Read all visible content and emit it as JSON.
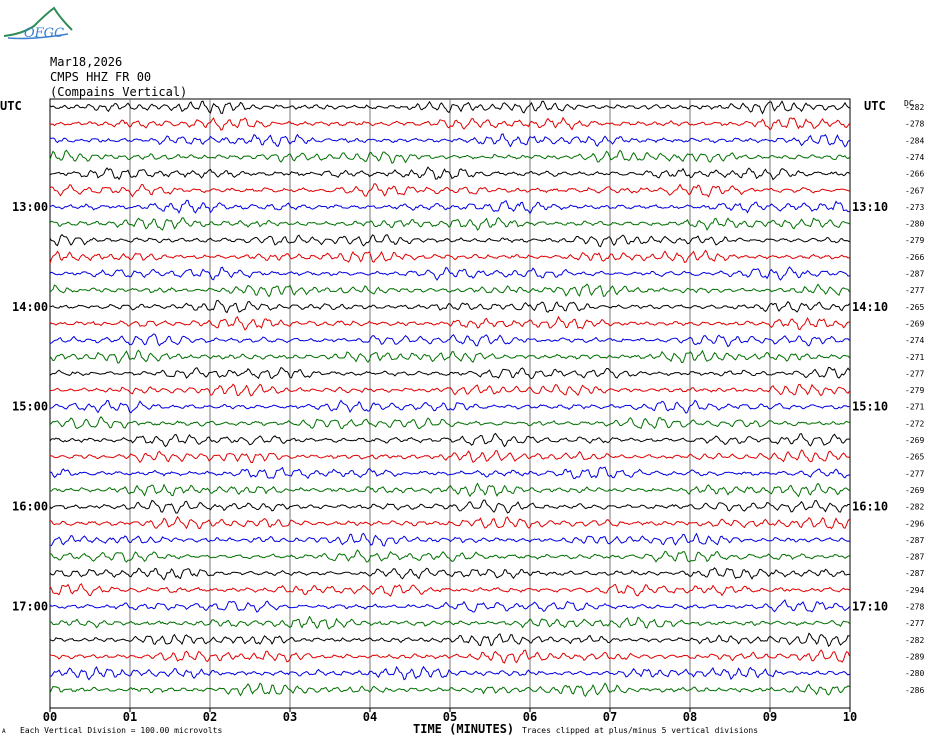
{
  "logo": {
    "text": "OFGC",
    "icon": "mountain-logo-icon",
    "color": "#3a7fd0"
  },
  "header": {
    "date": "Mar18,2026",
    "station": "CMPS HHZ FR 00",
    "name": "(Compains Vertical)"
  },
  "axis": {
    "left_label": "UTC",
    "right_label": "UTC",
    "dc_label": "DC",
    "x_title": "TIME (MINUTES)",
    "x_ticks": [
      "00",
      "01",
      "02",
      "03",
      "04",
      "05",
      "06",
      "07",
      "08",
      "09",
      "10"
    ]
  },
  "footer": {
    "mark": "A",
    "scale": "Each Vertical Division =  100.00 microvolts",
    "clip": "Traces clipped at plus/minus 5 vertical divisions"
  },
  "chart_data": {
    "type": "line",
    "title": "",
    "xlabel": "TIME (MINUTES)",
    "ylabel": "UTC",
    "xlim": [
      0,
      10
    ],
    "grid": true,
    "trace_count": 36,
    "minutes_per_trace": 10,
    "trace_colors": [
      "#000000",
      "#e00000",
      "#0000e0",
      "#007000"
    ],
    "left_hour_labels": [
      {
        "trace": 6,
        "label": "13:00"
      },
      {
        "trace": 12,
        "label": "14:00"
      },
      {
        "trace": 18,
        "label": "15:00"
      },
      {
        "trace": 24,
        "label": "16:00"
      },
      {
        "trace": 30,
        "label": "17:00"
      }
    ],
    "right_hour_labels": [
      {
        "trace": 6,
        "label": "13:10"
      },
      {
        "trace": 12,
        "label": "14:10"
      },
      {
        "trace": 18,
        "label": "15:10"
      },
      {
        "trace": 24,
        "label": "16:10"
      },
      {
        "trace": 30,
        "label": "17:10"
      }
    ],
    "dc_offsets": [
      -282,
      -278,
      -284,
      -274,
      -266,
      -267,
      -273,
      -280,
      -279,
      -266,
      -287,
      -277,
      -265,
      -269,
      -274,
      -271,
      -277,
      -279,
      -271,
      -272,
      -269,
      -265,
      -277,
      -269,
      -282,
      -296,
      -287,
      -287,
      -287,
      -294,
      -278,
      -277,
      -282,
      -289,
      -280,
      -286
    ]
  }
}
